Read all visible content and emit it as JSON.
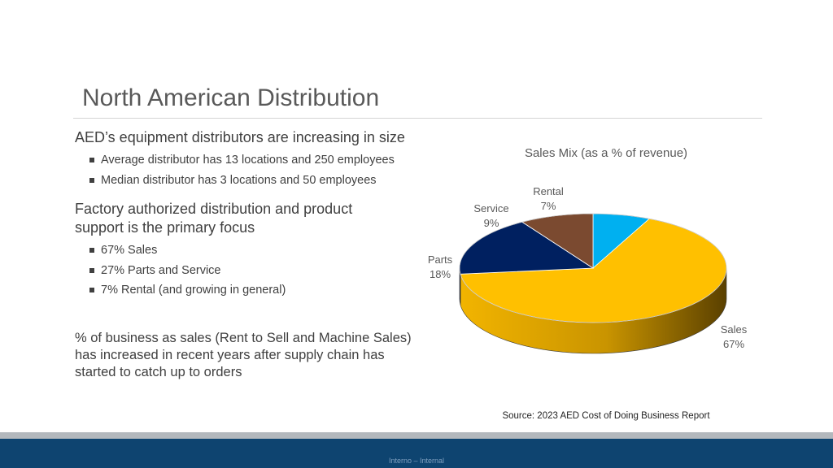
{
  "slide": {
    "title": "North American Distribution",
    "section1": {
      "heading": "AED’s equipment distributors are increasing in size",
      "bullets": [
        "Average distributor has 13 locations and 250 employees",
        "Median distributor has 3 locations and 50 employees"
      ]
    },
    "section2": {
      "heading_line1": "Factory authorized distribution and product",
      "heading_line2": "support is the primary focus",
      "bullets": [
        "67% Sales",
        "27% Parts and Service",
        "7% Rental (and growing in general)"
      ]
    },
    "section3": {
      "line1": "% of business as sales (Rent to Sell and Machine Sales)",
      "line2": "has increased in recent years after supply chain has",
      "line3": "started to catch up to orders"
    },
    "source": "Source: 2023 AED Cost of Doing Business Report",
    "footer": "Interno – Internal"
  },
  "chart_data": {
    "type": "pie",
    "title": "Sales Mix (as a % of revenue)",
    "labels": [
      "Rental",
      "Sales",
      "Parts",
      "Service"
    ],
    "values": [
      7,
      67,
      18,
      9
    ],
    "value_labels": [
      "7%",
      "67%",
      "18%",
      "9%"
    ],
    "colors": [
      "#00b0f0",
      "#ffc000",
      "#002060",
      "#7b4a30"
    ],
    "side_colors": [
      "#0086b8",
      "#b48a00",
      "#00143d",
      "#4e2d1c"
    ]
  }
}
